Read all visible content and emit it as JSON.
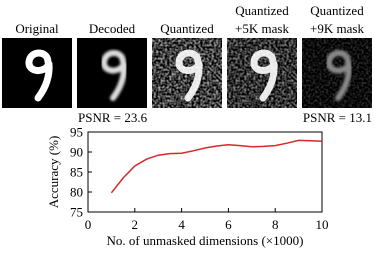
{
  "panels": [
    {
      "label": [
        "Original"
      ]
    },
    {
      "label": [
        "Decoded"
      ]
    },
    {
      "label": [
        "Quantized"
      ]
    },
    {
      "label": [
        "Quantized",
        "+5K mask"
      ]
    },
    {
      "label": [
        "Quantized",
        "+9K mask"
      ]
    }
  ],
  "psnr": [
    "PSNR = 23.6",
    "PSNR = 13.1"
  ],
  "chart_data": {
    "type": "line",
    "xlabel": "No. of unmasked dimensions (×1000)",
    "ylabel": "Accuracy (%)",
    "x": [
      1,
      1.5,
      2,
      2.5,
      3,
      3.5,
      4,
      4.5,
      5,
      5.5,
      6,
      6.5,
      7,
      7.5,
      8,
      8.5,
      9,
      9.5,
      10
    ],
    "series": [
      {
        "color": "#d42a2a",
        "values": [
          79.8,
          83.5,
          86.5,
          88.2,
          89.2,
          89.6,
          89.7,
          90.3,
          91.0,
          91.5,
          91.8,
          91.6,
          91.3,
          91.4,
          91.6,
          92.2,
          92.9,
          92.8,
          92.7
        ]
      }
    ],
    "xlim": [
      0,
      10
    ],
    "xticks": [
      0,
      2,
      4,
      6,
      8,
      10
    ],
    "ylim": [
      75,
      95
    ],
    "yticks": [
      75,
      80,
      85,
      90,
      95
    ]
  }
}
